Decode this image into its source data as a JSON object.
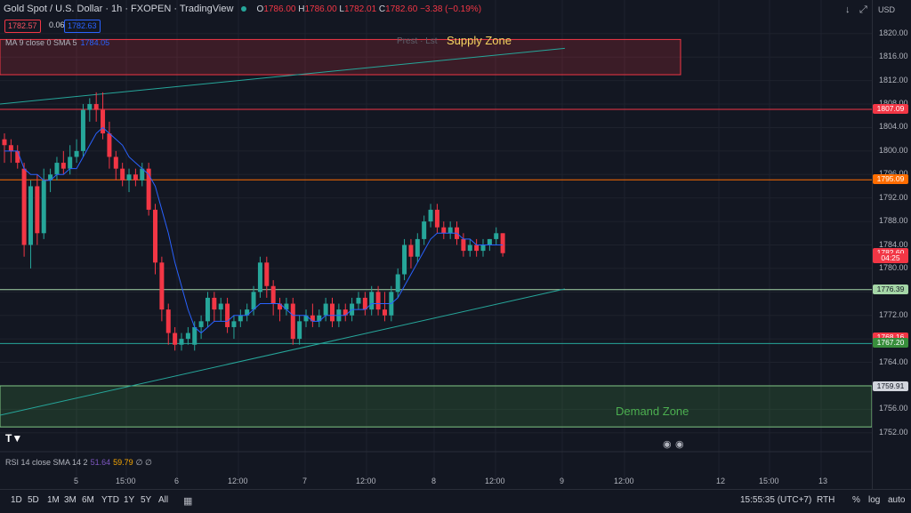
{
  "header": {
    "title": "Gold Spot / U.S. Dollar · 1h · FXOPEN · TradingView",
    "o_label": "O",
    "o": "1786.00",
    "h_label": "H",
    "h": "1786.00",
    "l_label": "L",
    "l": "1782.01",
    "c_label": "C",
    "c": "1782.60",
    "change": "−3.38 (−0.19%)",
    "bid": "1782.57",
    "spread": "0.06",
    "ask": "1782.63"
  },
  "indicators": {
    "ma_label": "MA 9 close 0 SMA 5",
    "ma_value": "1784.05",
    "rsi_label": "RSI 14 close SMA 14 2",
    "rsi_value": "51.64",
    "rsi_sma": "59.79",
    "rsi_extra": "∅ ∅"
  },
  "currency": "USD",
  "zones": {
    "supply_label": "Supply Zone",
    "supply_faded": "Prest · Lst",
    "demand_label": "Demand Zone"
  },
  "price_labels": [
    {
      "text": "1807.09",
      "color": "#f23645",
      "price": 1807.09
    },
    {
      "text": "1795.09",
      "color": "#ff6d00",
      "price": 1795.09
    },
    {
      "text": "1782.60",
      "color": "#f23645",
      "price": 1782.6
    },
    {
      "text": "04:25",
      "color": "#f23645",
      "price": 1781.6
    },
    {
      "text": "1776.39",
      "color": "#a5d6a7",
      "price": 1776.39
    },
    {
      "text": "1768.16",
      "color": "#f23645",
      "price": 1768.16
    },
    {
      "text": "1767.20",
      "color": "#388e3c",
      "price": 1767.2
    },
    {
      "text": "1759.91",
      "color": "#d1d4dc",
      "price": 1759.91
    }
  ],
  "y_ticks": [
    "1820.00",
    "1816.00",
    "1812.00",
    "1808.00",
    "1804.00",
    "1800.00",
    "1796.00",
    "1792.00",
    "1788.00",
    "1784.00",
    "1780.00",
    "1776.00",
    "1772.00",
    "1768.00",
    "1764.00",
    "1760.00",
    "1756.00",
    "1752.00"
  ],
  "x_ticks": [
    "5",
    "15:00",
    "6",
    "12:00",
    "7",
    "12:00",
    "8",
    "12:00",
    "9",
    "12:00",
    "12",
    "15:00",
    "13"
  ],
  "bottom_bar": {
    "timeframes": [
      "1D",
      "5D",
      "1M",
      "3M",
      "6M",
      "YTD",
      "1Y",
      "5Y",
      "All"
    ],
    "time": "15:55:35 (UTC+7)",
    "rth": "RTH",
    "percent": "%",
    "log": "log",
    "auto": "auto"
  },
  "chart_data": {
    "type": "candlestick",
    "title": "Gold Spot / U.S. Dollar · 1h · FXOPEN",
    "y_range": [
      1750,
      1823
    ],
    "candles": [
      {
        "o": 1802,
        "h": 1803,
        "l": 1798,
        "c": 1801
      },
      {
        "o": 1801,
        "h": 1802,
        "l": 1798,
        "c": 1800
      },
      {
        "o": 1800,
        "h": 1801,
        "l": 1797,
        "c": 1798
      },
      {
        "o": 1797,
        "h": 1798,
        "l": 1782,
        "c": 1784
      },
      {
        "o": 1784,
        "h": 1795,
        "l": 1780,
        "c": 1794
      },
      {
        "o": 1794,
        "h": 1796,
        "l": 1784,
        "c": 1786
      },
      {
        "o": 1786,
        "h": 1797,
        "l": 1785,
        "c": 1795
      },
      {
        "o": 1795,
        "h": 1797,
        "l": 1793,
        "c": 1796
      },
      {
        "o": 1796,
        "h": 1799,
        "l": 1795,
        "c": 1798
      },
      {
        "o": 1798,
        "h": 1800,
        "l": 1796,
        "c": 1797
      },
      {
        "o": 1797,
        "h": 1801,
        "l": 1796,
        "c": 1799
      },
      {
        "o": 1799,
        "h": 1802,
        "l": 1798,
        "c": 1800
      },
      {
        "o": 1800,
        "h": 1808,
        "l": 1799,
        "c": 1807
      },
      {
        "o": 1807,
        "h": 1809,
        "l": 1805,
        "c": 1808
      },
      {
        "o": 1808,
        "h": 1810,
        "l": 1805,
        "c": 1807
      },
      {
        "o": 1807,
        "h": 1810,
        "l": 1802,
        "c": 1803
      },
      {
        "o": 1803,
        "h": 1805,
        "l": 1797,
        "c": 1799
      },
      {
        "o": 1799,
        "h": 1800,
        "l": 1795,
        "c": 1797
      },
      {
        "o": 1797,
        "h": 1798,
        "l": 1794,
        "c": 1795
      },
      {
        "o": 1795,
        "h": 1797,
        "l": 1793,
        "c": 1796
      },
      {
        "o": 1796,
        "h": 1797,
        "l": 1794,
        "c": 1795
      },
      {
        "o": 1795,
        "h": 1798,
        "l": 1794,
        "c": 1797
      },
      {
        "o": 1797,
        "h": 1798,
        "l": 1789,
        "c": 1790
      },
      {
        "o": 1790,
        "h": 1791,
        "l": 1779,
        "c": 1781
      },
      {
        "o": 1781,
        "h": 1782,
        "l": 1771,
        "c": 1773
      },
      {
        "o": 1773,
        "h": 1774,
        "l": 1767,
        "c": 1769
      },
      {
        "o": 1769,
        "h": 1770,
        "l": 1766,
        "c": 1767
      },
      {
        "o": 1767,
        "h": 1769,
        "l": 1766,
        "c": 1768
      },
      {
        "o": 1768,
        "h": 1770,
        "l": 1767,
        "c": 1769
      },
      {
        "o": 1767,
        "h": 1771,
        "l": 1766,
        "c": 1770
      },
      {
        "o": 1770,
        "h": 1772,
        "l": 1768,
        "c": 1771
      },
      {
        "o": 1771,
        "h": 1776,
        "l": 1770,
        "c": 1775
      },
      {
        "o": 1775,
        "h": 1776,
        "l": 1771,
        "c": 1773
      },
      {
        "o": 1773,
        "h": 1775,
        "l": 1771,
        "c": 1774
      },
      {
        "o": 1774,
        "h": 1775,
        "l": 1769,
        "c": 1770
      },
      {
        "o": 1770,
        "h": 1772,
        "l": 1768,
        "c": 1771
      },
      {
        "o": 1771,
        "h": 1773,
        "l": 1770,
        "c": 1772
      },
      {
        "o": 1772,
        "h": 1774,
        "l": 1771,
        "c": 1773
      },
      {
        "o": 1773,
        "h": 1777,
        "l": 1772,
        "c": 1776
      },
      {
        "o": 1776,
        "h": 1782,
        "l": 1775,
        "c": 1781
      },
      {
        "o": 1781,
        "h": 1782,
        "l": 1775,
        "c": 1777
      },
      {
        "o": 1777,
        "h": 1778,
        "l": 1772,
        "c": 1774
      },
      {
        "o": 1774,
        "h": 1775,
        "l": 1771,
        "c": 1773
      },
      {
        "o": 1773,
        "h": 1775,
        "l": 1772,
        "c": 1774
      },
      {
        "o": 1774,
        "h": 1775,
        "l": 1767,
        "c": 1768
      },
      {
        "o": 1768,
        "h": 1772,
        "l": 1767,
        "c": 1771
      },
      {
        "o": 1771,
        "h": 1773,
        "l": 1770,
        "c": 1772
      },
      {
        "o": 1772,
        "h": 1774,
        "l": 1770,
        "c": 1771
      },
      {
        "o": 1771,
        "h": 1773,
        "l": 1770,
        "c": 1772
      },
      {
        "o": 1772,
        "h": 1775,
        "l": 1771,
        "c": 1774
      },
      {
        "o": 1774,
        "h": 1775,
        "l": 1770,
        "c": 1771
      },
      {
        "o": 1771,
        "h": 1774,
        "l": 1770,
        "c": 1773
      },
      {
        "o": 1773,
        "h": 1774,
        "l": 1771,
        "c": 1772
      },
      {
        "o": 1772,
        "h": 1775,
        "l": 1771,
        "c": 1774
      },
      {
        "o": 1774,
        "h": 1776,
        "l": 1773,
        "c": 1775
      },
      {
        "o": 1775,
        "h": 1776,
        "l": 1772,
        "c": 1773
      },
      {
        "o": 1773,
        "h": 1777,
        "l": 1772,
        "c": 1776
      },
      {
        "o": 1776,
        "h": 1777,
        "l": 1772,
        "c": 1773
      },
      {
        "o": 1773,
        "h": 1776,
        "l": 1771,
        "c": 1772
      },
      {
        "o": 1772,
        "h": 1777,
        "l": 1771,
        "c": 1776
      },
      {
        "o": 1776,
        "h": 1780,
        "l": 1775,
        "c": 1779
      },
      {
        "o": 1779,
        "h": 1785,
        "l": 1778,
        "c": 1784
      },
      {
        "o": 1784,
        "h": 1785,
        "l": 1780,
        "c": 1782
      },
      {
        "o": 1782,
        "h": 1786,
        "l": 1781,
        "c": 1785
      },
      {
        "o": 1785,
        "h": 1789,
        "l": 1784,
        "c": 1788
      },
      {
        "o": 1788,
        "h": 1791,
        "l": 1787,
        "c": 1790
      },
      {
        "o": 1790,
        "h": 1791,
        "l": 1786,
        "c": 1787
      },
      {
        "o": 1787,
        "h": 1788,
        "l": 1785,
        "c": 1786
      },
      {
        "o": 1786,
        "h": 1788,
        "l": 1785,
        "c": 1787
      },
      {
        "o": 1787,
        "h": 1788,
        "l": 1784,
        "c": 1785
      },
      {
        "o": 1785,
        "h": 1786,
        "l": 1782,
        "c": 1783
      },
      {
        "o": 1783,
        "h": 1785,
        "l": 1782,
        "c": 1784
      },
      {
        "o": 1784,
        "h": 1785,
        "l": 1782,
        "c": 1783
      },
      {
        "o": 1783,
        "h": 1785,
        "l": 1782,
        "c": 1784
      },
      {
        "o": 1784,
        "h": 1785,
        "l": 1783,
        "c": 1785
      },
      {
        "o": 1785,
        "h": 1787,
        "l": 1784,
        "c": 1786
      },
      {
        "o": 1786,
        "h": 1786,
        "l": 1782,
        "c": 1782.6
      }
    ],
    "ma": [
      1800,
      1800,
      1800,
      1797,
      1796,
      1796,
      1795,
      1795,
      1796,
      1796,
      1797,
      1797,
      1799,
      1801,
      1803,
      1804,
      1803,
      1802,
      1801,
      1799,
      1798,
      1797,
      1796,
      1794,
      1790,
      1786,
      1781,
      1777,
      1773,
      1770,
      1769,
      1770,
      1771,
      1771,
      1771,
      1772,
      1772,
      1772,
      1773,
      1774,
      1774,
      1774,
      1774,
      1773,
      1772,
      1772,
      1772,
      1771,
      1771,
      1772,
      1772,
      1772,
      1772,
      1773,
      1773,
      1773,
      1774,
      1774,
      1774,
      1774,
      1775,
      1777,
      1779,
      1781,
      1783,
      1785,
      1786,
      1786,
      1786,
      1786,
      1785,
      1785,
      1784,
      1784,
      1784,
      1784,
      1784
    ],
    "horizontal_levels": [
      {
        "price": 1807.09,
        "color": "#f23645"
      },
      {
        "price": 1795.09,
        "color": "#ff6d00"
      },
      {
        "price": 1776.39,
        "color": "#a5d6a7"
      },
      {
        "price": 1767.2,
        "color": "#26a69a"
      }
    ],
    "supply_zone": [
      1813,
      1819
    ],
    "demand_zone": [
      1753,
      1760
    ],
    "trendlines": [
      {
        "from": [
          0,
          1808
        ],
        "to": [
          78,
          1817.5
        ],
        "color": "#26a69a"
      },
      {
        "from": [
          0,
          1755
        ],
        "to": [
          78,
          1776.5
        ],
        "color": "#26a69a"
      }
    ]
  }
}
